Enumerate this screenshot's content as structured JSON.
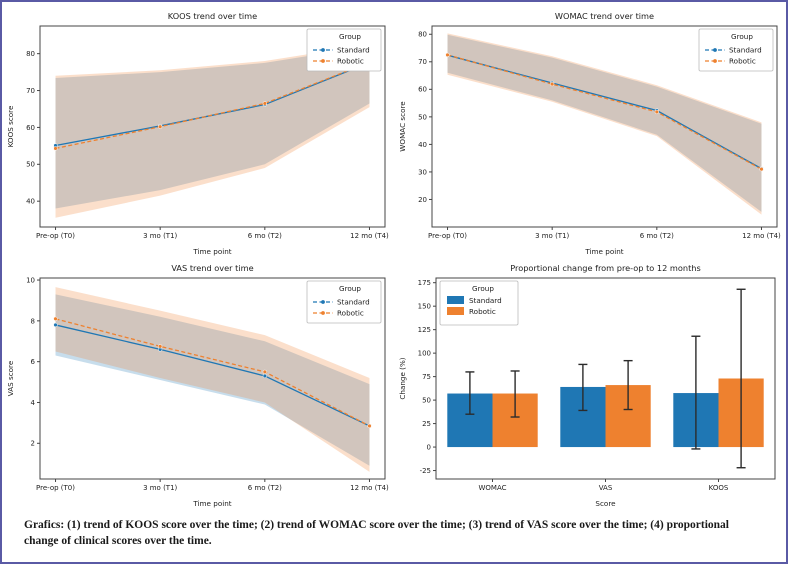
{
  "caption": "Grafics: (1) trend of KOOS score over the time;  (2) trend of WOMAC score over the time;  (3) trend of VAS score over the time; (4) proportional change of clinical scores over the time.",
  "colors": {
    "standard": "#1f77b4",
    "robotic": "#ee812f",
    "error_bar": "#2b2b2b",
    "axis": "#444444",
    "page_border": "#5a5aa5"
  },
  "legend": {
    "title": "Group",
    "entries": [
      "Standard",
      "Robotic"
    ]
  },
  "chart_data": [
    {
      "id": "koos",
      "type": "line",
      "title": "KOOS trend over time",
      "xlabel": "Time point",
      "ylabel": "KOOS score",
      "categories": [
        "Pre-op (T0)",
        "3 mo (T1)",
        "6 mo (T2)",
        "12 mo (T4)"
      ],
      "ylim": [
        33,
        87.5
      ],
      "yticks": [
        40,
        50,
        60,
        70,
        80
      ],
      "legend_pos": "top-right",
      "series": [
        {
          "name": "Standard",
          "values": [
            55.1,
            60.4,
            66.2,
            77.6
          ],
          "ci_lower": [
            38.0,
            43.0,
            50.0,
            66.5
          ],
          "ci_upper": [
            73.4,
            75.0,
            77.5,
            82.0
          ]
        },
        {
          "name": "Robotic",
          "values": [
            54.3,
            60.2,
            66.5,
            77.7
          ],
          "ci_lower": [
            35.5,
            41.5,
            49.0,
            65.5
          ],
          "ci_upper": [
            74.0,
            75.5,
            78.0,
            82.5
          ]
        }
      ]
    },
    {
      "id": "womac",
      "type": "line",
      "title": "WOMAC trend over time",
      "xlabel": "Time point",
      "ylabel": "WOMAC score",
      "categories": [
        "Pre-op (T0)",
        "3 mo (T1)",
        "6 mo (T2)",
        "12 mo (T4)"
      ],
      "ylim": [
        10,
        83
      ],
      "yticks": [
        20,
        30,
        40,
        50,
        60,
        70,
        80
      ],
      "legend_pos": "top-right",
      "series": [
        {
          "name": "Standard",
          "values": [
            72.4,
            62.3,
            52.3,
            31.2
          ],
          "ci_lower": [
            66.0,
            56.0,
            43.5,
            15.5
          ],
          "ci_upper": [
            79.8,
            71.5,
            61.0,
            47.5
          ]
        },
        {
          "name": "Robotic",
          "values": [
            72.5,
            61.9,
            51.8,
            31.0
          ],
          "ci_lower": [
            65.3,
            55.5,
            43.0,
            14.5
          ],
          "ci_upper": [
            80.3,
            72.0,
            61.5,
            48.0
          ]
        }
      ]
    },
    {
      "id": "vas",
      "type": "line",
      "title": "VAS trend over time",
      "xlabel": "Time point",
      "ylabel": "VAS score",
      "categories": [
        "Pre-op (T0)",
        "3 mo (T1)",
        "6 mo (T2)",
        "12 mo (T4)"
      ],
      "ylim": [
        0.25,
        10.1
      ],
      "yticks": [
        2,
        4,
        6,
        8,
        10
      ],
      "legend_pos": "top-right",
      "series": [
        {
          "name": "Standard",
          "values": [
            7.8,
            6.6,
            5.3,
            2.85
          ],
          "ci_lower": [
            6.3,
            5.1,
            3.9,
            0.9
          ],
          "ci_upper": [
            9.3,
            8.2,
            7.0,
            4.9
          ]
        },
        {
          "name": "Robotic",
          "values": [
            8.1,
            6.75,
            5.5,
            2.85
          ],
          "ci_lower": [
            6.5,
            5.2,
            4.0,
            0.6
          ],
          "ci_upper": [
            9.65,
            8.5,
            7.3,
            5.2
          ]
        }
      ]
    },
    {
      "id": "change",
      "type": "bar",
      "title": "Proportional change from pre-op to 12 months",
      "xlabel": "Score",
      "ylabel": "Change (%)",
      "categories": [
        "WOMAC",
        "VAS",
        "KOOS"
      ],
      "ylim": [
        -34,
        180
      ],
      "yticks": [
        -25,
        0,
        25,
        50,
        75,
        100,
        125,
        150,
        175
      ],
      "legend_pos": "top-left",
      "series": [
        {
          "name": "Standard",
          "values": [
            57,
            64,
            57.5
          ],
          "err_lower": [
            35,
            39,
            -2
          ],
          "err_upper": [
            80,
            88,
            118
          ]
        },
        {
          "name": "Robotic",
          "values": [
            57,
            66,
            73
          ],
          "err_lower": [
            32,
            40,
            -22
          ],
          "err_upper": [
            81,
            92,
            168
          ]
        }
      ]
    }
  ]
}
